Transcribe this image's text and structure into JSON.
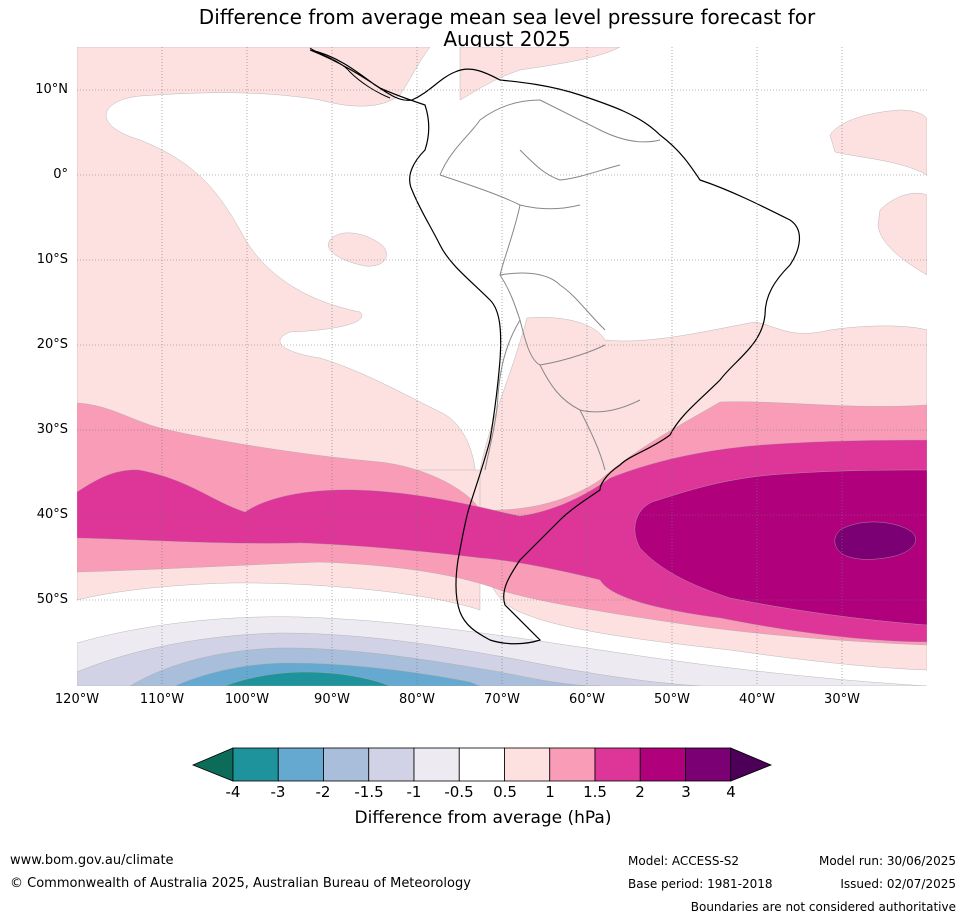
{
  "title_line1": "Difference from average mean sea level pressure forecast for",
  "title_line2": "August 2025",
  "map": {
    "lat_labels": [
      "10°N",
      "0°",
      "10°S",
      "20°S",
      "30°S",
      "40°S",
      "50°S"
    ],
    "lon_labels": [
      "120°W",
      "110°W",
      "100°W",
      "90°W",
      "80°W",
      "70°W",
      "60°W",
      "50°W",
      "40°W",
      "30°W"
    ],
    "region": "South America and surrounding oceans"
  },
  "colorbar": {
    "label": "Difference from average (hPa)",
    "ticks": [
      "-4",
      "-3",
      "-2",
      "-1.5",
      "-1",
      "-0.5",
      "0.5",
      "1",
      "1.5",
      "2",
      "3",
      "4"
    ],
    "colors": {
      "below_-4": "#0d6b5a",
      "-4_-3": "#1f939b",
      "-3_-2": "#65a8d0",
      "-2_-1.5": "#a8bedb",
      "-1.5_-1": "#d2d2e6",
      "-1_-0.5": "#eeeaf1",
      "-0.5_0.5": "#ffffff",
      "0.5_1": "#fde0e0",
      "1_1.5": "#f99cb8",
      "1.5_2": "#de3599",
      "2_3": "#b0007c",
      "3_4": "#7b0073",
      "above_4": "#4d0058"
    }
  },
  "footer": {
    "website": "www.bom.gov.au/climate",
    "copyright": "© Commonwealth of Australia 2025, Australian Bureau of Meteorology",
    "model": "Model: ACCESS-S2",
    "base_period": "Base period: 1981-2018",
    "model_run": "Model run: 30/06/2025",
    "issued": "Issued: 02/07/2025",
    "disclaimer": "Boundaries are not considered authoritative"
  }
}
